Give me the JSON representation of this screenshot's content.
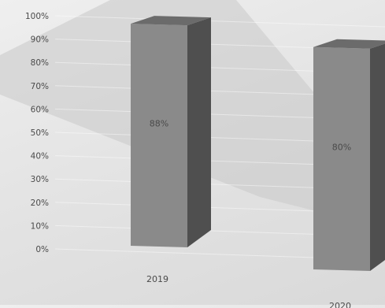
{
  "chart_data": {
    "type": "bar",
    "categories": [
      "2019",
      "2020"
    ],
    "values": [
      88,
      80
    ],
    "data_labels": [
      "88%",
      "80%"
    ],
    "title": "",
    "xlabel": "",
    "ylabel": "",
    "ylim": [
      0,
      100
    ],
    "y_ticks": [
      "0%",
      "10%",
      "20%",
      "30%",
      "40%",
      "50%",
      "60%",
      "70%",
      "80%",
      "90%",
      "100%"
    ],
    "grid": true,
    "three_d": true,
    "colors": {
      "bar_front": "#8a8a8a",
      "bar_side": "#4f4f4f",
      "bar_top": "#6b6b6b",
      "band": "#c9c9c9"
    }
  }
}
